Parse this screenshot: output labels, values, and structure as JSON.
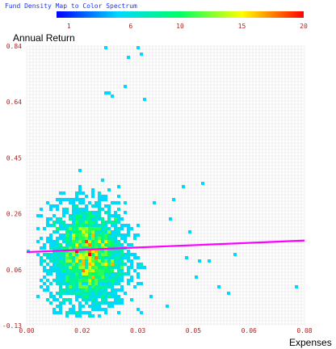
{
  "legend": {
    "title": "Fund Density Map to Color Spectrum",
    "ticks": [
      "1",
      "6",
      "10",
      "15",
      "20"
    ],
    "tick_values": [
      1,
      6,
      10,
      15,
      20
    ],
    "range": [
      0,
      20
    ],
    "stops": [
      "#0000ff",
      "#00d8ff",
      "#00ff66",
      "#ffff00",
      "#ff0000"
    ]
  },
  "chart_data": {
    "type": "heatmap",
    "xlabel": "Expenses",
    "ylabel": "Annual Return",
    "xlim": [
      0,
      0.08
    ],
    "ylim": [
      -0.13,
      0.84
    ],
    "x_ticks": [
      "0.00",
      "0.02",
      "0.03",
      "0.05",
      "0.06",
      "0.08"
    ],
    "x_tick_values": [
      0,
      0.016,
      0.032,
      0.048,
      0.064,
      0.08
    ],
    "y_ticks": [
      "0.84",
      "0.64",
      "0.45",
      "0.26",
      "0.06",
      "-0.13"
    ],
    "y_tick_values": [
      0.84,
      0.646,
      0.452,
      0.258,
      0.064,
      -0.13
    ],
    "grid": true,
    "cluster": {
      "center": [
        0.0175,
        0.11
      ],
      "spread": [
        0.0055,
        0.09
      ],
      "x_extent": [
        0.003,
        0.034
      ],
      "y_extent": [
        -0.1,
        0.42
      ],
      "count": 2600,
      "peak_density": 15
    },
    "outliers": [
      [
        0.032,
        0.84
      ],
      [
        0.0225,
        0.83
      ],
      [
        0.033,
        0.81
      ],
      [
        0.029,
        0.8
      ],
      [
        0.0225,
        0.68
      ],
      [
        0.024,
        0.675
      ],
      [
        0.025,
        0.67
      ],
      [
        0.0285,
        0.695
      ],
      [
        0.0335,
        0.66
      ],
      [
        0.042,
        0.31
      ],
      [
        0.045,
        0.35
      ],
      [
        0.051,
        0.36
      ],
      [
        0.032,
        0.18
      ],
      [
        0.046,
        0.11
      ],
      [
        0.05,
        0.09
      ],
      [
        0.053,
        0.09
      ],
      [
        0.055,
        0.0
      ],
      [
        0.058,
        -0.02
      ],
      [
        0.078,
        0.01
      ],
      [
        0.0,
        0.125
      ],
      [
        0.047,
        0.2
      ],
      [
        0.041,
        0.24
      ],
      [
        0.036,
        -0.03
      ],
      [
        0.04,
        -0.06
      ],
      [
        0.049,
        0.04
      ],
      [
        0.06,
        0.12
      ],
      [
        0.037,
        0.3
      ]
    ],
    "series": [
      {
        "type": "line",
        "x": [
          0,
          0.08
        ],
        "y": [
          0.125,
          0.165
        ],
        "color": "#ff00ff"
      }
    ]
  }
}
